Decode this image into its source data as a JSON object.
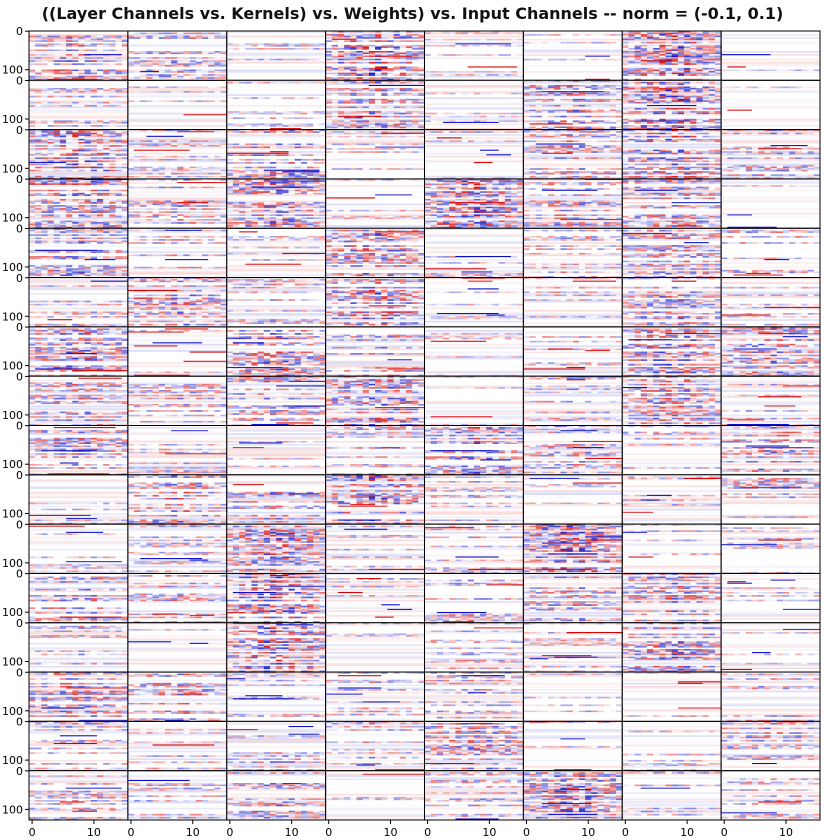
{
  "title": "((Layer Channels vs. Kernels) vs. Weights) vs. Input Channels -- norm = (-0.1, 0.1)",
  "chart_data": {
    "type": "heatmap",
    "title": "((Layer Channels vs. Kernels) vs. Weights) vs. Input Channels -- norm = (-0.1, 0.1)",
    "grid": {
      "rows": 16,
      "cols": 8
    },
    "panel_shape": {
      "rows": 128,
      "cols": 16
    },
    "norm": [
      -0.1,
      0.1
    ],
    "colormap": "bwr",
    "colors": {
      "negative": "#0a10c8",
      "zero": "#ffffff",
      "positive": "#d80000"
    },
    "x_ticks": [
      0,
      10
    ],
    "y_ticks": [
      0,
      100
    ],
    "xlim": [
      0,
      16
    ],
    "ylim": [
      128,
      0
    ],
    "density": [
      [
        0.55,
        0.45,
        0.25,
        0.85,
        0.15,
        0.1,
        0.85,
        0.2
      ],
      [
        0.35,
        0.2,
        0.2,
        0.55,
        0.1,
        0.6,
        0.85,
        0.1
      ],
      [
        0.75,
        0.3,
        0.6,
        0.15,
        0.25,
        0.5,
        0.75,
        0.45
      ],
      [
        0.7,
        0.45,
        0.7,
        0.2,
        0.8,
        0.5,
        0.55,
        0.1
      ],
      [
        0.6,
        0.3,
        0.2,
        0.7,
        0.25,
        0.35,
        0.5,
        0.4
      ],
      [
        0.3,
        0.6,
        0.3,
        0.75,
        0.1,
        0.25,
        0.6,
        0.2
      ],
      [
        0.7,
        0.1,
        0.7,
        0.5,
        0.15,
        0.25,
        0.7,
        0.6
      ],
      [
        0.5,
        0.4,
        0.5,
        0.75,
        0.1,
        0.35,
        0.6,
        0.3
      ],
      [
        0.6,
        0.25,
        0.2,
        0.35,
        0.7,
        0.45,
        0.35,
        0.6
      ],
      [
        0.2,
        0.6,
        0.5,
        0.75,
        0.25,
        0.1,
        0.25,
        0.4
      ],
      [
        0.2,
        0.3,
        0.7,
        0.25,
        0.3,
        0.85,
        0.2,
        0.2
      ],
      [
        0.55,
        0.45,
        0.8,
        0.25,
        0.35,
        0.5,
        0.6,
        0.2
      ],
      [
        0.3,
        0.1,
        0.8,
        0.15,
        0.3,
        0.25,
        0.7,
        0.15
      ],
      [
        0.6,
        0.55,
        0.25,
        0.3,
        0.4,
        0.25,
        0.2,
        0.4
      ],
      [
        0.35,
        0.25,
        0.35,
        0.3,
        0.6,
        0.15,
        0.15,
        0.45
      ],
      [
        0.4,
        0.35,
        0.55,
        0.15,
        0.35,
        0.8,
        0.35,
        0.3
      ]
    ]
  }
}
